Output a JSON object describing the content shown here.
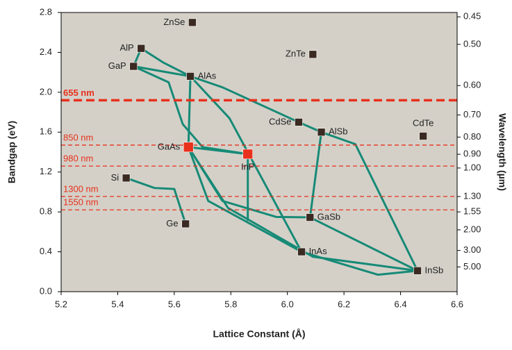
{
  "chart_data": {
    "type": "scatter",
    "xlabel": "Lattice Constant (Å)",
    "ylabel": "Bandgap (eV)",
    "y2label": "Wavelength (µm)",
    "xlim": [
      5.2,
      6.6
    ],
    "xticks": [
      5.2,
      5.4,
      5.6,
      5.8,
      {
        "value": 6,
        "label": "6.0"
      },
      6.2,
      6.4,
      6.6
    ],
    "ylim": [
      0,
      2.8
    ],
    "yticks": [
      {
        "value": 0,
        "label": "0.0"
      },
      0.4,
      0.8,
      1.2,
      1.6,
      {
        "value": 2,
        "label": "2.0"
      },
      2.4,
      2.8
    ],
    "y2scale": "reciprocal",
    "y2lim": [
      null,
      0.443
    ],
    "y2ticks": [
      0.45,
      {
        "value": 0.5,
        "label": "0.50"
      },
      {
        "value": 0.6,
        "label": "0.60"
      },
      {
        "value": 0.7,
        "label": "0.70"
      },
      {
        "value": 0.8,
        "label": "0.80"
      },
      {
        "value": 0.9,
        "label": "0.90"
      },
      {
        "value": 1,
        "label": "1.00"
      },
      {
        "value": 1.3,
        "label": "1.30"
      },
      1.55,
      {
        "value": 2,
        "label": "2.00"
      },
      {
        "value": 3,
        "label": "3.00"
      },
      {
        "value": 5,
        "label": "5.00"
      }
    ],
    "plot_background": "#d4d0c8",
    "points": {
      "labels": [
        "ZnSe",
        "AlP",
        "GaP",
        "AlAs",
        "ZnTe",
        "CdSe",
        "AlSb",
        "CdTe",
        "GaAs",
        "InP",
        "Si",
        "Ge",
        "GaSb",
        "InAs",
        "InSb"
      ],
      "x": [
        5.664,
        5.483,
        5.456,
        5.657,
        6.09,
        6.04,
        6.12,
        6.48,
        5.65,
        5.86,
        5.43,
        5.64,
        6.08,
        6.05,
        6.46
      ],
      "y": [
        2.7,
        2.44,
        2.26,
        2.16,
        2.38,
        1.7,
        1.6,
        1.56,
        1.45,
        1.38,
        1.14,
        0.68,
        0.745,
        0.4,
        0.21
      ],
      "colors": [
        "#3b2a22",
        "#3b2a22",
        "#3b2a22",
        "#3b2a22",
        "#3b2a22",
        "#3b2a22",
        "#3b2a22",
        "#3b2a22",
        "#e8301c",
        "#e8301c",
        "#3b2a22",
        "#3b2a22",
        "#3b2a22",
        "#3b2a22",
        "#3b2a22"
      ],
      "sizes": [
        11,
        11,
        11,
        11,
        11,
        11,
        11,
        11,
        14,
        14,
        11,
        11,
        11,
        11,
        11
      ]
    },
    "curve_color": "#168a76",
    "curves": [
      {
        "x": [
          5.456,
          5.483
        ],
        "y": [
          2.26,
          2.44
        ]
      },
      {
        "x": [
          5.483,
          5.56,
          5.657
        ],
        "y": [
          2.44,
          2.3,
          2.16
        ]
      },
      {
        "x": [
          5.456,
          5.657
        ],
        "y": [
          2.26,
          2.16
        ]
      },
      {
        "x": [
          5.456,
          5.58,
          5.63,
          5.7,
          5.86
        ],
        "y": [
          2.26,
          2.1,
          1.68,
          1.45,
          1.38
        ]
      },
      {
        "x": [
          5.657,
          5.65
        ],
        "y": [
          2.16,
          1.45
        ]
      },
      {
        "x": [
          5.657,
          5.77,
          6.04,
          6.12
        ],
        "y": [
          2.16,
          2.05,
          1.7,
          1.6
        ]
      },
      {
        "x": [
          5.657,
          5.795,
          6.05
        ],
        "y": [
          2.16,
          1.74,
          0.4
        ]
      },
      {
        "x": [
          5.65,
          5.72,
          6.05
        ],
        "y": [
          1.45,
          0.91,
          0.4
        ]
      },
      {
        "x": [
          5.65,
          5.79,
          6.09,
          6.46
        ],
        "y": [
          1.45,
          0.84,
          0.35,
          0.21
        ]
      },
      {
        "x": [
          5.65,
          5.77,
          5.96,
          6.08
        ],
        "y": [
          1.45,
          0.91,
          0.75,
          0.745
        ]
      },
      {
        "x": [
          5.86,
          5.86
        ],
        "y": [
          1.38,
          0.71
        ]
      },
      {
        "x": [
          5.65,
          5.86
        ],
        "y": [
          1.45,
          1.38
        ]
      },
      {
        "x": [
          6.12,
          6.08
        ],
        "y": [
          1.6,
          0.745
        ]
      },
      {
        "x": [
          6.12,
          6.24,
          6.46
        ],
        "y": [
          1.6,
          1.48,
          0.21
        ]
      },
      {
        "x": [
          6.08,
          6.46
        ],
        "y": [
          0.745,
          0.21
        ]
      },
      {
        "x": [
          6.05,
          6.32,
          6.46
        ],
        "y": [
          0.4,
          0.17,
          0.21
        ]
      },
      {
        "x": [
          5.43,
          5.53,
          5.6,
          5.64
        ],
        "y": [
          1.14,
          1.04,
          1.03,
          0.68
        ]
      }
    ],
    "reference_color": "#e8301c",
    "reference_lines": [
      {
        "label": "655 nm",
        "y": 1.92,
        "bold": true
      },
      {
        "label": "850 nm",
        "y": 1.47,
        "bold": false
      },
      {
        "label": "980 nm",
        "y": 1.26,
        "bold": false
      },
      {
        "label": "1300 nm",
        "y": 0.955,
        "bold": false
      },
      {
        "label": "1550 nm",
        "y": 0.82,
        "bold": false
      }
    ]
  }
}
